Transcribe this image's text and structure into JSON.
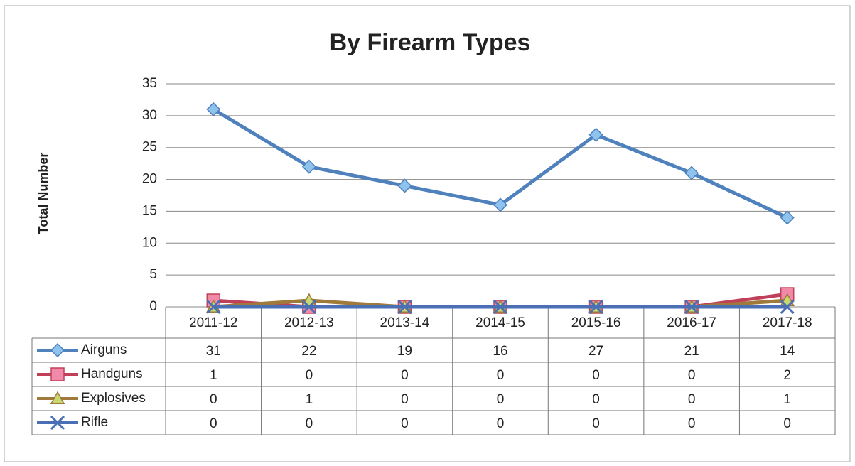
{
  "chart_data": {
    "type": "line",
    "title": "By Firearm Types",
    "y_label": "Total Number",
    "categories": [
      "2011-12",
      "2012-13",
      "2013-14",
      "2014-15",
      "2015-16",
      "2016-17",
      "2017-18"
    ],
    "series": [
      {
        "name": "Airguns",
        "color": "#4f81bd",
        "marker": "diamond",
        "marker_color": "#8ec3ee",
        "values": [
          31,
          22,
          19,
          16,
          27,
          21,
          14
        ]
      },
      {
        "name": "Handguns",
        "color": "#c0405a",
        "marker": "square",
        "marker_color": "#f08aa8",
        "values": [
          1,
          0,
          0,
          0,
          0,
          0,
          2
        ]
      },
      {
        "name": "Explosives",
        "color": "#a07a3a",
        "marker": "triangle",
        "marker_color": "#c8d870",
        "values": [
          0,
          1,
          0,
          0,
          0,
          0,
          1
        ]
      },
      {
        "name": "Rifle",
        "color": "#4a6fb5",
        "marker": "x",
        "marker_color": "#4a6fb5",
        "values": [
          0,
          0,
          0,
          0,
          0,
          0,
          0
        ]
      }
    ],
    "ylim": [
      0,
      35
    ],
    "yticks": [
      0,
      5,
      10,
      15,
      20,
      25,
      30,
      35
    ],
    "grid": true,
    "data_table": true
  }
}
